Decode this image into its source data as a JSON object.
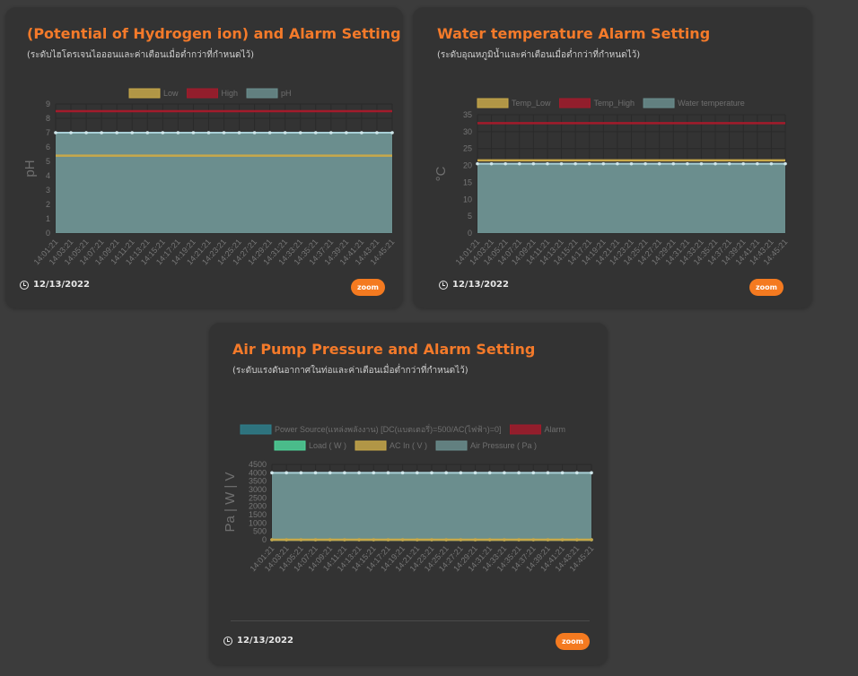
{
  "cards": {
    "ph": {
      "title": "(Potential of Hydrogen ion) and Alarm Setting",
      "subtitle": "(ระดับไฮโดรเจนไอออนและค่าเตือนเมื่อต่ำกว่าที่กำหนดไว้)",
      "date": "12/13/2022",
      "zoom_label": "zoom"
    },
    "temp": {
      "title": "Water temperature Alarm Setting",
      "subtitle": "(ระดับอุณหภูมิน้ำและค่าเตือนเมื่อต่ำกว่าที่กำหนดไว้)",
      "date": "12/13/2022",
      "zoom_label": "zoom"
    },
    "air": {
      "title": "Air Pump Pressure and Alarm Setting",
      "subtitle": "(ระดับแรงดันอากาศในท่อและค่าเตือนเมื่อต่ำกว่าที่กำหนดไว้)",
      "date": "12/13/2022",
      "zoom_label": "zoom"
    }
  },
  "colors": {
    "low": "#c8a84a",
    "high": "#a31b2b",
    "fill": "#6b8e8e",
    "fill_stroke": "#a8cfd6",
    "power": "#2e7f8c",
    "load": "#4fd49a",
    "grid": "#2a2a2a",
    "tick": "#777777"
  },
  "chart_data": [
    {
      "id": "ph",
      "type": "line",
      "title": "(Potential of Hydrogen ion) and Alarm Setting",
      "ylabel": "pH",
      "ylim": [
        0,
        9
      ],
      "yticks": [
        "0",
        "1",
        "2",
        "3",
        "4",
        "5",
        "6",
        "7",
        "8",
        "9"
      ],
      "x": [
        "14:01:21",
        "14:03:21",
        "14:05:21",
        "14:07:21",
        "14:09:21",
        "14:11:21",
        "14:13:21",
        "14:15:21",
        "14:17:21",
        "14:19:21",
        "14:21:21",
        "14:23:21",
        "14:25:21",
        "14:27:21",
        "14:29:21",
        "14:31:21",
        "14:33:21",
        "14:35:21",
        "14:37:21",
        "14:39:21",
        "14:41:21",
        "14:43:21",
        "14:45:21"
      ],
      "series": [
        {
          "name": "Low",
          "type": "line",
          "color_key": "low",
          "value": 5.4
        },
        {
          "name": "High",
          "type": "line",
          "color_key": "high",
          "value": 8.5
        },
        {
          "name": "pH",
          "type": "area",
          "color_key": "fill",
          "value": 7.0
        }
      ]
    },
    {
      "id": "temp",
      "type": "line",
      "title": "Water temperature Alarm Setting",
      "ylabel": "°C",
      "ylim": [
        0,
        35
      ],
      "yticks": [
        "0",
        "5",
        "10",
        "15",
        "20",
        "25",
        "30",
        "35"
      ],
      "x": [
        "14:01:21",
        "14:03:21",
        "14:05:21",
        "14:07:21",
        "14:09:21",
        "14:11:21",
        "14:13:21",
        "14:15:21",
        "14:17:21",
        "14:19:21",
        "14:21:21",
        "14:23:21",
        "14:25:21",
        "14:27:21",
        "14:29:21",
        "14:31:21",
        "14:33:21",
        "14:35:21",
        "14:37:21",
        "14:39:21",
        "14:41:21",
        "14:43:21",
        "14:45:21"
      ],
      "series": [
        {
          "name": "Temp_Low",
          "type": "line",
          "color_key": "low",
          "value": 21.5
        },
        {
          "name": "Temp_High",
          "type": "line",
          "color_key": "high",
          "value": 32.5
        },
        {
          "name": "Water temperature",
          "type": "area",
          "color_key": "fill",
          "value": 20.5
        }
      ]
    },
    {
      "id": "air",
      "type": "line",
      "title": "Air Pump Pressure and Alarm Setting",
      "ylabel": "Pa | W | V",
      "ylim": [
        0,
        4500
      ],
      "yticks": [
        "0",
        "500",
        "1000",
        "1500",
        "2000",
        "2500",
        "3000",
        "3500",
        "4000",
        "4500"
      ],
      "x": [
        "14:01:21",
        "14:03:21",
        "14:05:21",
        "14:07:21",
        "14:09:21",
        "14:11:21",
        "14:13:21",
        "14:15:21",
        "14:17:21",
        "14:19:21",
        "14:21:21",
        "14:23:21",
        "14:25:21",
        "14:27:21",
        "14:29:21",
        "14:31:21",
        "14:33:21",
        "14:35:21",
        "14:37:21",
        "14:39:21",
        "14:41:21",
        "14:43:21",
        "14:45:21"
      ],
      "series": [
        {
          "name": "Power Source(แหล่งพลังงาน) [DC(แบตเตอรี่)=500/AC(ไฟฟ้า)=0]",
          "type": "line",
          "color_key": "power",
          "value": 0
        },
        {
          "name": "Alarm",
          "type": "line",
          "color_key": "high",
          "value": 0
        },
        {
          "name": "Load ( W )",
          "type": "line",
          "color_key": "load",
          "value": 0
        },
        {
          "name": "AC In ( V )",
          "type": "line",
          "color_key": "low",
          "value": 0
        },
        {
          "name": "Air Pressure ( Pa )",
          "type": "area",
          "color_key": "fill",
          "value": 4000
        }
      ]
    }
  ]
}
